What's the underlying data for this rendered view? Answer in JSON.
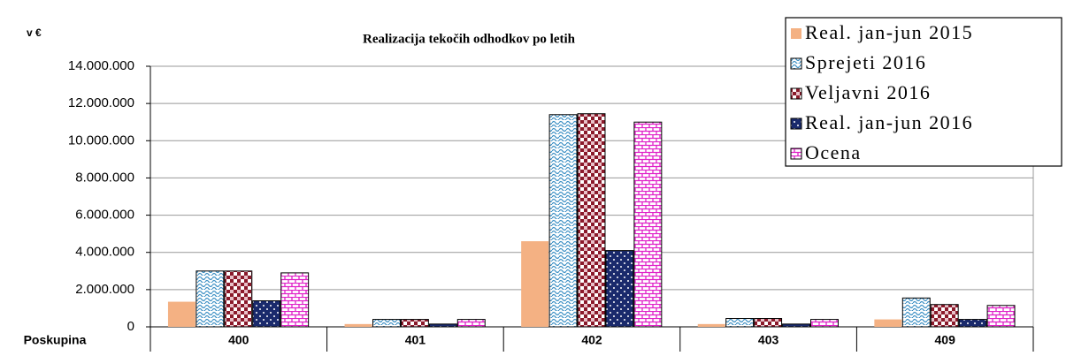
{
  "chart_data": {
    "type": "bar",
    "title": "Realizacija tekočih odhodkov po letih",
    "ylabel": "v €",
    "xlabel": "Poskupina",
    "categories": [
      "400",
      "401",
      "402",
      "403",
      "409"
    ],
    "series": [
      {
        "name": "Real. jan-jun 2015",
        "color": "#f4b183",
        "pattern": "solid",
        "values": [
          1350000,
          150000,
          4600000,
          150000,
          400000
        ]
      },
      {
        "name": "Sprejeti 2016",
        "color": "#3b8fc4",
        "pattern": "waves",
        "values": [
          3000000,
          400000,
          11400000,
          450000,
          1550000
        ]
      },
      {
        "name": "Veljavni 2016",
        "color": "#8b1a2b",
        "pattern": "checker",
        "values": [
          3000000,
          400000,
          11450000,
          450000,
          1200000
        ]
      },
      {
        "name": "Real. jan-jun 2016",
        "color": "#1a2a6c",
        "pattern": "dots",
        "values": [
          1400000,
          150000,
          4100000,
          150000,
          400000
        ]
      },
      {
        "name": "Ocena",
        "color": "#e020c8",
        "pattern": "bricks",
        "values": [
          2900000,
          400000,
          11000000,
          400000,
          1150000
        ]
      }
    ],
    "ylim": [
      0,
      14000000
    ],
    "yticks": [
      0,
      {
        "value": 2000000,
        "label": "2.000.000"
      },
      {
        "value": 4000000,
        "label": "4.000.000"
      },
      {
        "value": 6000000,
        "label": "6.000.000"
      },
      {
        "value": 8000000,
        "label": "8.000.000"
      },
      {
        "value": 10000000,
        "label": "10.000.000"
      },
      {
        "value": 12000000,
        "label": "12.000.000"
      },
      {
        "value": 14000000,
        "label": "14.000.000"
      }
    ],
    "grid": true,
    "legend": "top-right"
  }
}
